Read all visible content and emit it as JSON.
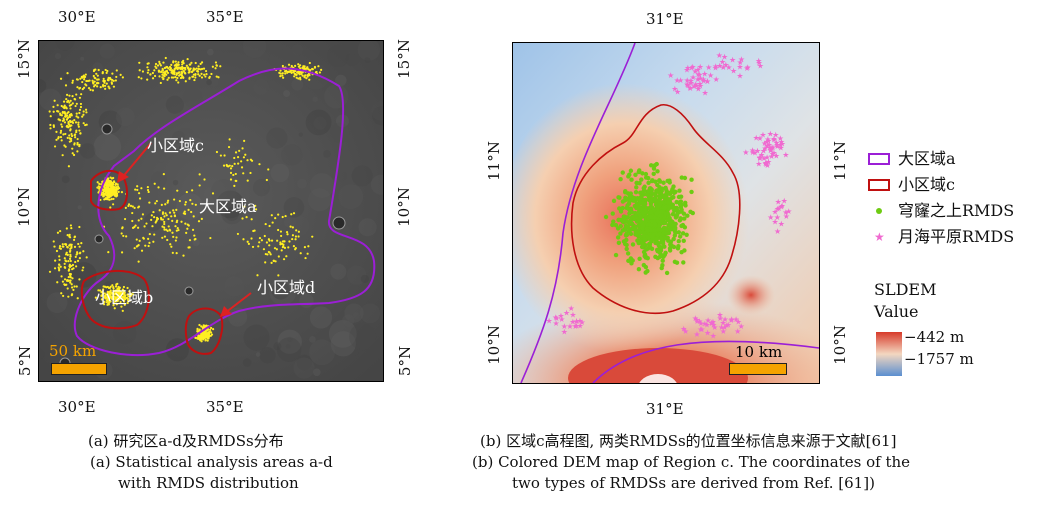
{
  "panel_a": {
    "top_ticks": [
      "30°E",
      "35°E"
    ],
    "bottom_ticks": [
      "30°E",
      "35°E"
    ],
    "left_ticks": [
      "15°N",
      "10°N",
      "5°N"
    ],
    "right_ticks": [
      "15°N",
      "10°N",
      "5°N"
    ],
    "labels": {
      "region_c": "小区域c",
      "region_a": "大区域a",
      "region_d": "小区域d",
      "region_b": "小区域b"
    },
    "scale_label": "50 km",
    "caption_cn": "(a) 研究区a-d及RMDSs分布",
    "caption_en_1": "(a) Statistical analysis areas a-d",
    "caption_en_2": "with RMDS distribution"
  },
  "panel_b": {
    "top_tick": "31°E",
    "bottom_tick": "31°E",
    "left_ticks": [
      "11°N",
      "10°N"
    ],
    "right_ticks": [
      "11°N",
      "10°N"
    ],
    "scale_label": "10 km",
    "caption_cn": "(b) 区域c高程图, 两类RMDSs的位置坐标信息来源于文献[61]",
    "caption_en_1": "(b) Colored DEM map of Region c. The coordinates of the",
    "caption_en_2": "two types of RMDSs are derived from Ref. [61])"
  },
  "legend": {
    "items": [
      {
        "label": "大区域a",
        "color": "#9b1fd6"
      },
      {
        "label": "小区域c",
        "color": "#c01010"
      },
      {
        "label": "穹窿之上RMDS",
        "color": "#6ecb12"
      },
      {
        "label": "月海平原RMDS",
        "color": "#f06ad0"
      }
    ],
    "colorbar_title_1": "SLDEM",
    "colorbar_title_2": "Value",
    "colorbar_max": "−442 m",
    "colorbar_min": "−1757 m"
  },
  "colors": {
    "dots_a": "#ffee22",
    "scalebar": "#f5a300",
    "purple": "#9b1fd6",
    "red": "#c01010",
    "green": "#6ecb12",
    "pink": "#f06ad0"
  }
}
